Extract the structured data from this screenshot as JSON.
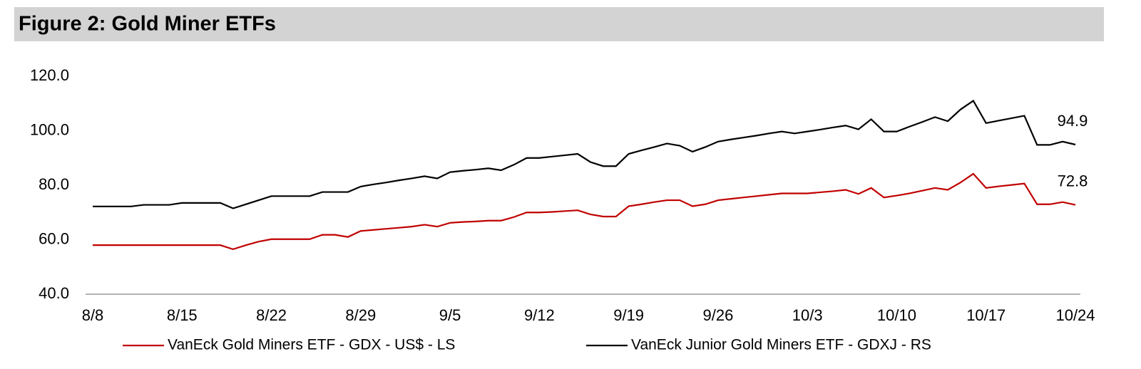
{
  "chart_data": {
    "type": "line",
    "title": "Figure 2: Gold Miner ETFs",
    "categories": [
      "8/8",
      null,
      null,
      null,
      null,
      null,
      null,
      "8/15",
      null,
      null,
      null,
      null,
      null,
      null,
      "8/22",
      null,
      null,
      null,
      null,
      null,
      null,
      "8/29",
      null,
      null,
      null,
      null,
      null,
      null,
      "9/5",
      null,
      null,
      null,
      null,
      null,
      null,
      "9/12",
      null,
      null,
      null,
      null,
      null,
      null,
      "9/19",
      null,
      null,
      null,
      null,
      null,
      null,
      "9/26",
      null,
      null,
      null,
      null,
      null,
      null,
      "10/3",
      null,
      null,
      null,
      null,
      null,
      null,
      "10/10",
      null,
      null,
      null,
      null,
      null,
      null,
      "10/17",
      null,
      null,
      null,
      null,
      null,
      null,
      "10/24"
    ],
    "series": [
      {
        "name": "VanEck Gold Miners ETF  - GDX  - US$ - LS",
        "color": "#c00000",
        "values": [
          58.0,
          58.0,
          58.0,
          58.0,
          58.0,
          58.0,
          58.0,
          58.0,
          58.0,
          58.0,
          58.0,
          56.5,
          58.0,
          59.3,
          60.2,
          60.2,
          60.2,
          60.2,
          61.8,
          61.8,
          61.0,
          63.2,
          63.6,
          64.0,
          64.4,
          64.8,
          65.5,
          64.8,
          66.2,
          66.5,
          66.7,
          67.0,
          67.0,
          68.3,
          70.0,
          70.0,
          70.2,
          70.5,
          70.8,
          69.3,
          68.5,
          68.5,
          72.3,
          73.0,
          73.8,
          74.5,
          74.5,
          72.3,
          73.0,
          74.5,
          75.0,
          75.5,
          76.0,
          76.5,
          77.0,
          77.0,
          77.0,
          77.4,
          77.8,
          78.3,
          76.8,
          79.0,
          75.5,
          76.2,
          77.0,
          78.0,
          79.0,
          78.3,
          81.0,
          84.2,
          79.0,
          79.6,
          80.1,
          80.6,
          73.0,
          73.0,
          73.8,
          72.8
        ]
      },
      {
        "name": "VanEck Junior Gold Miners ETF - GDXJ - RS",
        "color": "#000000",
        "values": [
          72.2,
          72.2,
          72.2,
          72.2,
          72.8,
          72.8,
          72.8,
          73.5,
          73.5,
          73.5,
          73.5,
          71.5,
          73.0,
          74.5,
          76.0,
          76.0,
          76.0,
          76.0,
          77.5,
          77.5,
          77.5,
          79.5,
          80.3,
          81.0,
          81.8,
          82.5,
          83.3,
          82.5,
          84.8,
          85.3,
          85.7,
          86.2,
          85.5,
          87.5,
          90.0,
          90.0,
          90.5,
          91.0,
          91.5,
          88.5,
          87.0,
          87.0,
          91.5,
          92.8,
          94.0,
          95.3,
          94.5,
          92.3,
          94.0,
          96.0,
          96.8,
          97.5,
          98.2,
          99.0,
          99.7,
          99.0,
          99.7,
          100.4,
          101.2,
          101.9,
          100.5,
          104.2,
          99.7,
          99.7,
          101.5,
          103.2,
          105.0,
          103.5,
          107.8,
          111.0,
          102.8,
          103.7,
          104.6,
          105.5,
          94.8,
          94.8,
          96.0,
          94.9
        ]
      }
    ],
    "ylim": [
      40,
      120
    ],
    "yticks": [
      {
        "value": 40,
        "label": "40.0"
      },
      {
        "value": 60,
        "label": "60.0"
      },
      {
        "value": 80,
        "label": "80.0"
      },
      {
        "value": 100,
        "label": "100.0"
      },
      {
        "value": 120,
        "label": "120.0"
      }
    ],
    "grid": false
  }
}
